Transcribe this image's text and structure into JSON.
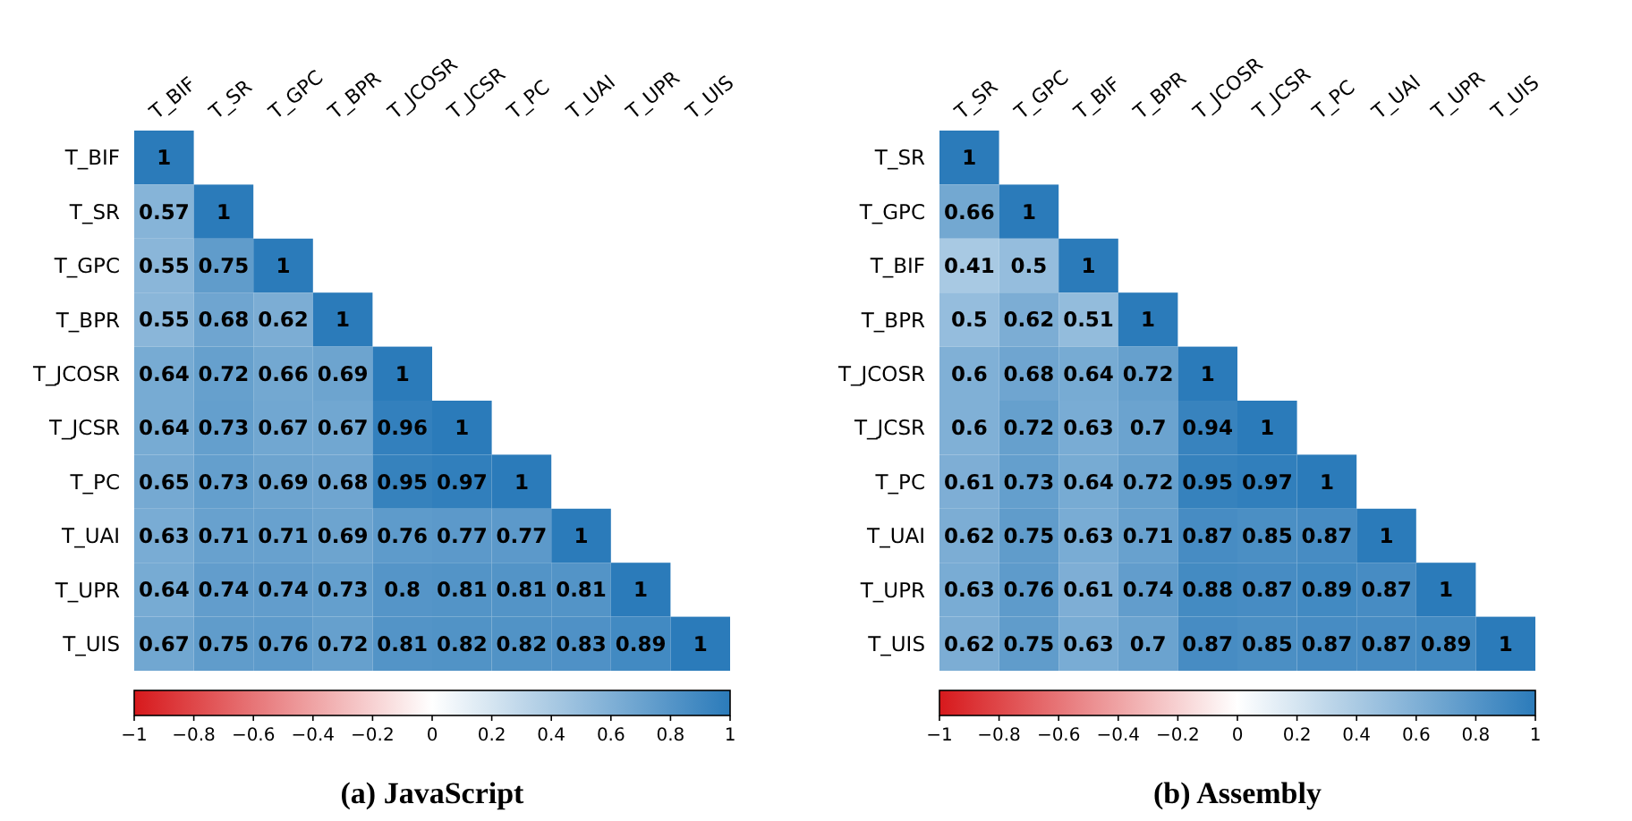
{
  "chart_data": [
    {
      "type": "heatmap",
      "title": "(a) JavaScript",
      "categories": [
        "T_BIF",
        "T_SR",
        "T_GPC",
        "T_BPR",
        "T_JCOSR",
        "T_JCSR",
        "T_PC",
        "T_UAI",
        "T_UPR",
        "T_UIS"
      ],
      "y_categories": [
        "T_BIF",
        "T_SR",
        "T_GPC",
        "T_BPR",
        "T_JCOSR",
        "T_JCSR",
        "T_PC",
        "T_UAI",
        "T_UPR",
        "T_UIS"
      ],
      "cells": [
        [
          1,
          null,
          null,
          null,
          null,
          null,
          null,
          null,
          null,
          null
        ],
        [
          0.57,
          1,
          null,
          null,
          null,
          null,
          null,
          null,
          null,
          null
        ],
        [
          0.55,
          0.75,
          1,
          null,
          null,
          null,
          null,
          null,
          null,
          null
        ],
        [
          0.55,
          0.68,
          0.62,
          1,
          null,
          null,
          null,
          null,
          null,
          null
        ],
        [
          0.64,
          0.72,
          0.66,
          0.69,
          1,
          null,
          null,
          null,
          null,
          null
        ],
        [
          0.64,
          0.73,
          0.67,
          0.67,
          0.96,
          1,
          null,
          null,
          null,
          null
        ],
        [
          0.65,
          0.73,
          0.69,
          0.68,
          0.95,
          0.97,
          1,
          null,
          null,
          null
        ],
        [
          0.63,
          0.71,
          0.71,
          0.69,
          0.76,
          0.77,
          0.77,
          1,
          null,
          null
        ],
        [
          0.64,
          0.74,
          0.74,
          0.73,
          0.8,
          0.81,
          0.81,
          0.81,
          1,
          null
        ],
        [
          0.67,
          0.75,
          0.76,
          0.72,
          0.81,
          0.82,
          0.82,
          0.83,
          0.89,
          1
        ]
      ],
      "data_labels": true,
      "clim": [
        -1,
        1
      ],
      "cticks": [
        {
          "value": -1,
          "label": "−1"
        },
        {
          "value": -0.8,
          "label": "−0.8"
        },
        {
          "value": -0.6,
          "label": "−0.6"
        },
        {
          "value": -0.4,
          "label": "−0.4"
        },
        {
          "value": -0.2,
          "label": "−0.2"
        },
        0,
        0.2,
        0.4,
        0.6,
        0.8,
        1
      ]
    },
    {
      "type": "heatmap",
      "title": "(b) Assembly",
      "categories": [
        "T_SR",
        "T_GPC",
        "T_BIF",
        "T_BPR",
        "T_JCOSR",
        "T_JCSR",
        "T_PC",
        "T_UAI",
        "T_UPR",
        "T_UIS"
      ],
      "y_categories": [
        "T_SR",
        "T_GPC",
        "T_BIF",
        "T_BPR",
        "T_JCOSR",
        "T_JCSR",
        "T_PC",
        "T_UAI",
        "T_UPR",
        "T_UIS"
      ],
      "cells": [
        [
          1,
          null,
          null,
          null,
          null,
          null,
          null,
          null,
          null,
          null
        ],
        [
          0.66,
          1,
          null,
          null,
          null,
          null,
          null,
          null,
          null,
          null
        ],
        [
          0.41,
          0.5,
          1,
          null,
          null,
          null,
          null,
          null,
          null,
          null
        ],
        [
          0.5,
          0.62,
          0.51,
          1,
          null,
          null,
          null,
          null,
          null,
          null
        ],
        [
          0.6,
          0.68,
          0.64,
          0.72,
          1,
          null,
          null,
          null,
          null,
          null
        ],
        [
          0.6,
          0.72,
          0.63,
          0.7,
          0.94,
          1,
          null,
          null,
          null,
          null
        ],
        [
          0.61,
          0.73,
          0.64,
          0.72,
          0.95,
          0.97,
          1,
          null,
          null,
          null
        ],
        [
          0.62,
          0.75,
          0.63,
          0.71,
          0.87,
          0.85,
          0.87,
          1,
          null,
          null
        ],
        [
          0.63,
          0.76,
          0.61,
          0.74,
          0.88,
          0.87,
          0.89,
          0.87,
          1,
          null
        ],
        [
          0.62,
          0.75,
          0.63,
          0.7,
          0.87,
          0.85,
          0.87,
          0.87,
          0.89,
          1
        ]
      ],
      "data_labels": true,
      "clim": [
        -1,
        1
      ],
      "cticks": [
        {
          "value": -1,
          "label": "−1"
        },
        {
          "value": -0.8,
          "label": "−0.8"
        },
        {
          "value": -0.6,
          "label": "−0.6"
        },
        {
          "value": -0.4,
          "label": "−0.4"
        },
        {
          "value": -0.2,
          "label": "−0.2"
        },
        0,
        0.2,
        0.4,
        0.6,
        0.8,
        1
      ]
    }
  ]
}
